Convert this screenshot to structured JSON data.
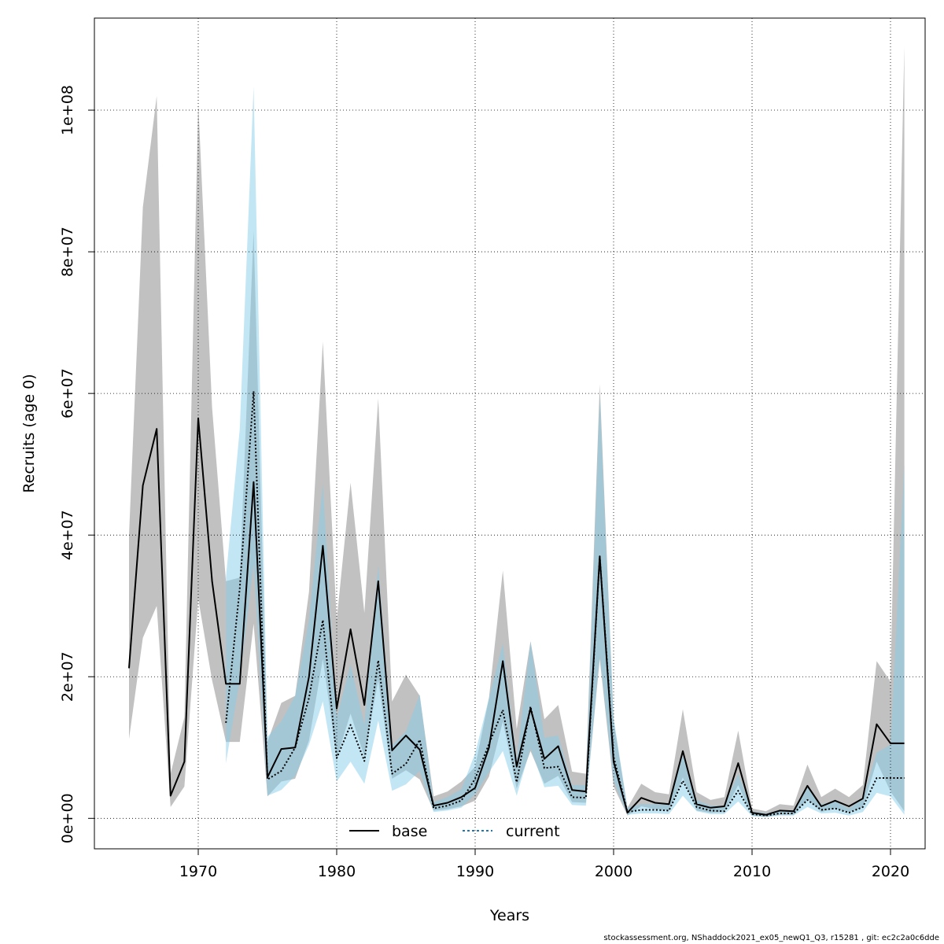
{
  "footer": "stockassessment.org, NShaddock2021_ex05_newQ1_Q3, r15281 , git: ec2c2a0c6dde",
  "colors": {
    "base_band": "#bebebe",
    "current_band": "#87ceeb",
    "base_line": "#000000",
    "current_line": "#000000",
    "current_legend": "#1f78b4",
    "grid": "#000000"
  },
  "chart_data": {
    "type": "line",
    "title": "",
    "xlabel": "Years",
    "ylabel": "Recruits (age 0)",
    "xlim": [
      1962.5,
      2022.5
    ],
    "ylim": [
      -4300000,
      113000000
    ],
    "grid": true,
    "legend_placement": "bottom",
    "x_ticks": [
      1970,
      1980,
      1990,
      2000,
      2010,
      2020
    ],
    "x_tick_labels": [
      "1970",
      "1980",
      "1990",
      "2000",
      "2010",
      "2020"
    ],
    "y_ticks": [
      0,
      20000000,
      40000000,
      60000000,
      80000000,
      100000000
    ],
    "y_tick_labels": [
      "0e+00",
      "2e+07",
      "4e+07",
      "6e+07",
      "8e+07",
      "1e+08"
    ],
    "series": [
      {
        "name": "base",
        "line_style": "solid",
        "x": [
          1965,
          1966,
          1967,
          1968,
          1969,
          1970,
          1971,
          1972,
          1973,
          1974,
          1975,
          1976,
          1977,
          1978,
          1979,
          1980,
          1981,
          1982,
          1983,
          1984,
          1985,
          1986,
          1987,
          1988,
          1989,
          1990,
          1991,
          1992,
          1993,
          1994,
          1995,
          1996,
          1997,
          1998,
          1999,
          2000,
          2001,
          2002,
          2003,
          2004,
          2005,
          2006,
          2007,
          2008,
          2009,
          2010,
          2011,
          2012,
          2013,
          2014,
          2015,
          2016,
          2017,
          2018,
          2019,
          2020,
          2021
        ],
        "values": [
          21200000,
          47000000,
          55000000,
          3200000,
          8000000,
          56500000,
          33500000,
          19000000,
          19000000,
          47500000,
          5800000,
          9800000,
          10000000,
          20000000,
          38500000,
          15500000,
          26700000,
          16000000,
          33500000,
          9600000,
          11700000,
          9700000,
          1800000,
          2200000,
          3000000,
          4300000,
          10000000,
          22200000,
          7300000,
          15500000,
          8400000,
          10200000,
          4000000,
          3800000,
          37000000,
          8000000,
          800000,
          2900000,
          2200000,
          2000000,
          9500000,
          2000000,
          1500000,
          1700000,
          7800000,
          800000,
          500000,
          1100000,
          1000000,
          4600000,
          1700000,
          2500000,
          1700000,
          2800000,
          13300000,
          10600000,
          10600000
        ],
        "lower": [
          11200000,
          25500000,
          30000000,
          1600000,
          4500000,
          31000000,
          19500000,
          10800000,
          10800000,
          27500000,
          3100000,
          5200000,
          5600000,
          11000000,
          22500000,
          8500000,
          14800000,
          8700000,
          19500000,
          5600000,
          6800000,
          5500000,
          1100000,
          1300000,
          1700000,
          2500000,
          5900000,
          13700000,
          4200000,
          9500000,
          4900000,
          6000000,
          2300000,
          2200000,
          22500000,
          4500000,
          400000,
          1700000,
          1300000,
          1100000,
          5800000,
          1100000,
          800000,
          900000,
          4700000,
          400000,
          200000,
          500000,
          500000,
          2700000,
          900000,
          1400000,
          900000,
          1500000,
          8000000,
          3800000,
          1000000
        ],
        "upper": [
          40000000,
          86300000,
          102000000,
          6300000,
          14300000,
          101000000,
          58000000,
          33500000,
          34000000,
          83000000,
          10800000,
          16300000,
          17300000,
          32000000,
          67300000,
          28000000,
          47400000,
          29000000,
          59300000,
          16500000,
          20300000,
          17300000,
          3100000,
          3800000,
          5200000,
          7300000,
          17000000,
          35000000,
          12600000,
          25000000,
          14000000,
          16000000,
          6600000,
          6300000,
          61300000,
          13800000,
          1500000,
          4900000,
          3700000,
          3400000,
          15400000,
          3700000,
          2600000,
          3000000,
          12400000,
          1400000,
          1000000,
          2000000,
          1800000,
          7600000,
          3000000,
          4200000,
          3000000,
          4700000,
          22200000,
          19300000,
          109000000
        ]
      },
      {
        "name": "current",
        "line_style": "dotted",
        "x": [
          1972,
          1973,
          1974,
          1975,
          1976,
          1977,
          1978,
          1979,
          1980,
          1981,
          1982,
          1983,
          1984,
          1985,
          1986,
          1987,
          1988,
          1989,
          1990,
          1991,
          1992,
          1993,
          1994,
          1995,
          1996,
          1997,
          1998,
          1999,
          2000,
          2001,
          2002,
          2003,
          2004,
          2005,
          2006,
          2007,
          2008,
          2009,
          2010,
          2011,
          2012,
          2013,
          2014,
          2015,
          2016,
          2017,
          2018,
          2019,
          2020,
          2021
        ],
        "values": [
          13500000,
          32500000,
          60300000,
          5500000,
          6700000,
          10000000,
          17000000,
          28000000,
          8500000,
          13200000,
          8100000,
          22300000,
          6300000,
          7700000,
          11100000,
          1400000,
          1800000,
          2500000,
          5600000,
          10500000,
          15300000,
          5100000,
          15800000,
          7100000,
          7300000,
          3000000,
          2900000,
          37000000,
          8700000,
          900000,
          1200000,
          1200000,
          1100000,
          5300000,
          1600000,
          1100000,
          1000000,
          3900000,
          600000,
          400000,
          700000,
          700000,
          2600000,
          1200000,
          1400000,
          800000,
          1600000,
          5700000,
          5700000,
          5700000
        ],
        "lower": [
          7800000,
          19500000,
          36000000,
          3200000,
          4000000,
          6000000,
          10400000,
          16500000,
          5200000,
          8000000,
          4900000,
          13800000,
          3900000,
          4800000,
          6700000,
          900000,
          1100000,
          1500000,
          3400000,
          6500000,
          9500000,
          3200000,
          9900000,
          4400000,
          4600000,
          1900000,
          1800000,
          23000000,
          5300000,
          500000,
          700000,
          700000,
          600000,
          3200000,
          1000000,
          600000,
          600000,
          2400000,
          300000,
          200000,
          400000,
          400000,
          1600000,
          700000,
          800000,
          400000,
          900000,
          3600000,
          3100000,
          500000
        ],
        "upper": [
          34000000,
          55000000,
          103300000,
          11500000,
          13700000,
          17300000,
          28000000,
          47300000,
          14200000,
          21700000,
          13300000,
          35800000,
          10300000,
          12300000,
          17500000,
          2300000,
          3000000,
          4100000,
          9200000,
          17000000,
          24700000,
          8200000,
          25000000,
          11400000,
          11700000,
          4700000,
          4700000,
          59500000,
          14200000,
          1500000,
          2000000,
          2000000,
          1900000,
          8900000,
          2600000,
          1800000,
          1800000,
          6300000,
          1000000,
          700000,
          1200000,
          1100000,
          4300000,
          2000000,
          2400000,
          1400000,
          2700000,
          9300000,
          10400000,
          50000000
        ]
      }
    ]
  }
}
